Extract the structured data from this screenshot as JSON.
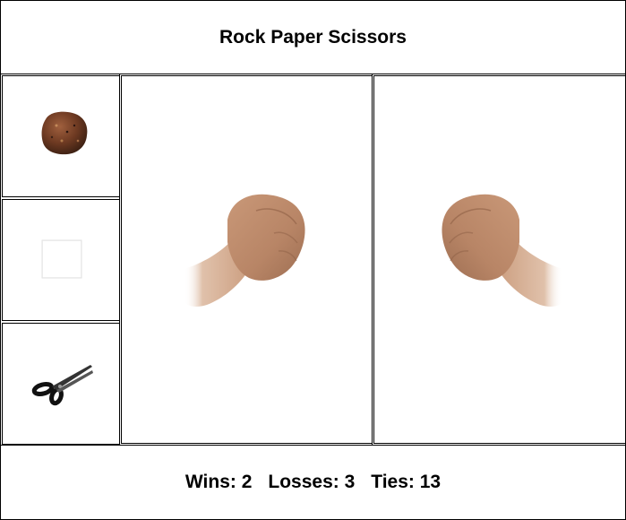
{
  "title": "Rock Paper Scissors",
  "choices": [
    {
      "name": "rock",
      "icon": "rock-icon"
    },
    {
      "name": "paper",
      "icon": "paper-icon"
    },
    {
      "name": "scissors",
      "icon": "scissors-icon"
    }
  ],
  "player_hand": {
    "shape": "fist",
    "icon": "fist-icon"
  },
  "computer_hand": {
    "shape": "fist",
    "icon": "fist-icon"
  },
  "score": {
    "wins_label": "Wins: 2",
    "losses_label": "Losses: 3",
    "ties_label": "Ties: 13"
  }
}
